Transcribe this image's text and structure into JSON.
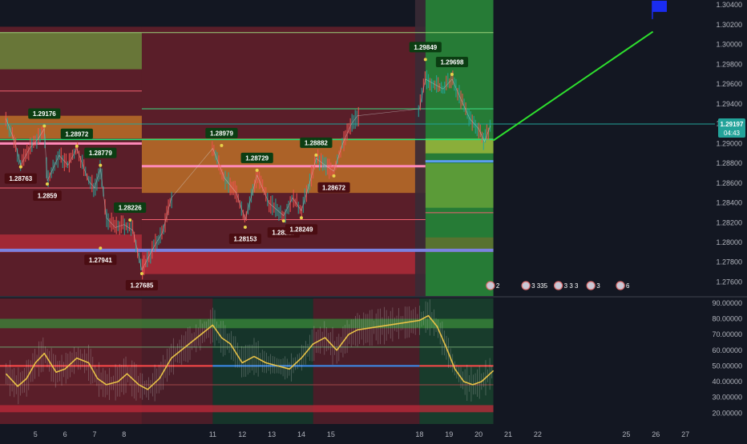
{
  "chart_data": [
    {
      "type": "candlestick",
      "panel": "price",
      "ylim": [
        1.2745,
        1.3045
      ],
      "grid": false,
      "y_ticks": [
        "1.30400",
        "1.30200",
        "1.30000",
        "1.29800",
        "1.29600",
        "1.29400",
        "1.29200",
        "1.29000",
        "1.28800",
        "1.28600",
        "1.28400",
        "1.28200",
        "1.28000",
        "1.27800",
        "1.27600"
      ],
      "current_price": "1.29197",
      "countdown": "04:43",
      "high_labels": [
        {
          "date": 5.3,
          "value": 1.29176,
          "label": "1.29176"
        },
        {
          "date": 6.4,
          "value": 1.28972,
          "label": "1.28972"
        },
        {
          "date": 7.2,
          "value": 1.28779,
          "label": "1.28779"
        },
        {
          "date": 8.2,
          "value": 1.28226,
          "label": "1.28226"
        },
        {
          "date": 11.3,
          "value": 1.28979,
          "label": "1.28979"
        },
        {
          "date": 12.5,
          "value": 1.28729,
          "label": "1.28729"
        },
        {
          "date": 14.5,
          "value": 1.28882,
          "label": "1.28882"
        },
        {
          "date": 18.2,
          "value": 1.29849,
          "label": "1.29849"
        },
        {
          "date": 19.1,
          "value": 1.29698,
          "label": "1.29698"
        }
      ],
      "low_labels": [
        {
          "date": 4.5,
          "value": 1.28763,
          "label": "1.28763"
        },
        {
          "date": 5.4,
          "value": 1.2859,
          "label": "1.2859"
        },
        {
          "date": 7.2,
          "value": 1.27941,
          "label": "1.27941"
        },
        {
          "date": 8.6,
          "value": 1.27685,
          "label": "1.27685"
        },
        {
          "date": 12.1,
          "value": 1.28153,
          "label": "1.28153"
        },
        {
          "date": 13.4,
          "value": 1.28217,
          "label": "1.28217"
        },
        {
          "date": 14.0,
          "value": 1.28249,
          "label": "1.28249"
        },
        {
          "date": 15.1,
          "value": 1.28672,
          "label": "1.28672"
        }
      ],
      "close_path": [
        {
          "date": 4.0,
          "value": 1.2925
        },
        {
          "date": 4.3,
          "value": 1.2902
        },
        {
          "date": 4.5,
          "value": 1.2878
        },
        {
          "date": 4.8,
          "value": 1.2895
        },
        {
          "date": 5.1,
          "value": 1.2905
        },
        {
          "date": 5.3,
          "value": 1.2915
        },
        {
          "date": 5.4,
          "value": 1.2862
        },
        {
          "date": 5.8,
          "value": 1.2888
        },
        {
          "date": 6.1,
          "value": 1.2878
        },
        {
          "date": 6.4,
          "value": 1.2895
        },
        {
          "date": 6.8,
          "value": 1.2862
        },
        {
          "date": 7.0,
          "value": 1.2855
        },
        {
          "date": 7.2,
          "value": 1.2875
        },
        {
          "date": 7.4,
          "value": 1.2825
        },
        {
          "date": 7.7,
          "value": 1.2815
        },
        {
          "date": 8.0,
          "value": 1.2818
        },
        {
          "date": 8.3,
          "value": 1.2812
        },
        {
          "date": 8.6,
          "value": 1.2772
        },
        {
          "date": 9.0,
          "value": 1.2795
        },
        {
          "date": 9.3,
          "value": 1.281
        },
        {
          "date": 9.6,
          "value": 1.2845
        },
        {
          "date": 11.0,
          "value": 1.2895
        },
        {
          "date": 11.4,
          "value": 1.2865
        },
        {
          "date": 11.8,
          "value": 1.285
        },
        {
          "date": 12.1,
          "value": 1.2823
        },
        {
          "date": 12.5,
          "value": 1.2868
        },
        {
          "date": 12.9,
          "value": 1.284
        },
        {
          "date": 13.4,
          "value": 1.2827
        },
        {
          "date": 13.7,
          "value": 1.2845
        },
        {
          "date": 14.0,
          "value": 1.2832
        },
        {
          "date": 14.3,
          "value": 1.2862
        },
        {
          "date": 14.5,
          "value": 1.2885
        },
        {
          "date": 14.8,
          "value": 1.2878
        },
        {
          "date": 15.1,
          "value": 1.2872
        },
        {
          "date": 15.4,
          "value": 1.29
        },
        {
          "date": 15.7,
          "value": 1.292
        },
        {
          "date": 15.9,
          "value": 1.2928
        },
        {
          "date": 18.0,
          "value": 1.2935
        },
        {
          "date": 18.2,
          "value": 1.2965
        },
        {
          "date": 18.5,
          "value": 1.296
        },
        {
          "date": 18.8,
          "value": 1.2955
        },
        {
          "date": 19.1,
          "value": 1.2965
        },
        {
          "date": 19.4,
          "value": 1.2945
        },
        {
          "date": 19.7,
          "value": 1.2925
        },
        {
          "date": 20.0,
          "value": 1.2915
        },
        {
          "date": 20.2,
          "value": 1.2902
        },
        {
          "date": 20.4,
          "value": 1.2918
        }
      ],
      "weekend_gaps": [
        [
          9.6,
          11.0
        ],
        [
          15.9,
          18.0
        ]
      ],
      "zones": [
        {
          "from": 3.8,
          "to": 8.6,
          "bottom": 1.2745,
          "top": 1.3018,
          "color": "#b22833",
          "opacity": 0.45
        },
        {
          "from": 8.6,
          "to": 18.2,
          "bottom": 1.2745,
          "top": 1.3018,
          "color": "#b22833",
          "opacity": 0.45
        },
        {
          "from": 18.2,
          "to": 20.5,
          "bottom": 1.2745,
          "top": 1.3045,
          "color": "#2e9e3e",
          "opacity": 0.75
        },
        {
          "from": 3.8,
          "to": 8.6,
          "bottom": 1.2975,
          "top": 1.3012,
          "color": "#6c8c3c",
          "opacity": 0.8
        },
        {
          "from": 3.8,
          "to": 8.6,
          "bottom": 1.2905,
          "top": 1.2928,
          "color": "#c87a28",
          "opacity": 0.75
        },
        {
          "from": 8.6,
          "to": 18.2,
          "bottom": 1.285,
          "top": 1.2905,
          "color": "#c87a28",
          "opacity": 0.75
        },
        {
          "from": 3.8,
          "to": 8.6,
          "bottom": 1.279,
          "top": 1.2808,
          "color": "#d03040",
          "opacity": 0.6
        },
        {
          "from": 8.6,
          "to": 18.2,
          "bottom": 1.2768,
          "top": 1.2792,
          "color": "#d03040",
          "opacity": 0.6
        },
        {
          "from": 18.2,
          "to": 20.5,
          "bottom": 1.289,
          "top": 1.2905,
          "color": "#b5c43c",
          "opacity": 0.7
        },
        {
          "from": 18.2,
          "to": 20.5,
          "bottom": 1.2835,
          "top": 1.288,
          "color": "#7fb03a",
          "opacity": 0.6
        },
        {
          "from": 18.2,
          "to": 20.5,
          "bottom": 1.279,
          "top": 1.2805,
          "color": "#8a6a2a",
          "opacity": 0.5
        },
        {
          "from": 17.85,
          "to": 18.2,
          "bottom": 1.2745,
          "top": 1.3045,
          "color": "#3a2a35",
          "opacity": 0.9
        }
      ],
      "levels": [
        {
          "from": 3.8,
          "to": 8.6,
          "value": 1.3012,
          "color": "#9bd27a",
          "width": 1
        },
        {
          "from": 8.6,
          "to": 18.2,
          "value": 1.3012,
          "color": "#9bd27a",
          "width": 1
        },
        {
          "from": 18.2,
          "to": 20.5,
          "value": 1.3012,
          "color": "#9bd27a",
          "width": 1
        },
        {
          "from": 3.8,
          "to": 8.6,
          "value": 1.2953,
          "color": "#f06070",
          "width": 1
        },
        {
          "from": 8.6,
          "to": 18.2,
          "value": 1.2935,
          "color": "#3ddc84",
          "width": 1
        },
        {
          "from": 18.2,
          "to": 20.5,
          "value": 1.2935,
          "color": "#3ddc84",
          "width": 1
        },
        {
          "from": 3.8,
          "to": 8.6,
          "value": 1.29,
          "color": "#ff8ab8",
          "width": 3
        },
        {
          "from": 8.6,
          "to": 18.2,
          "value": 1.2877,
          "color": "#ff8ab8",
          "width": 3
        },
        {
          "from": 3.8,
          "to": 20.5,
          "value": 1.2904,
          "color": "#22e07a",
          "width": 1.5
        },
        {
          "from": 18.2,
          "to": 20.5,
          "value": 1.2882,
          "color": "#5b9cf0",
          "width": 3
        },
        {
          "from": 3.8,
          "to": 8.6,
          "value": 1.2855,
          "color": "#f06070",
          "width": 1
        },
        {
          "from": 8.6,
          "to": 18.2,
          "value": 1.2823,
          "color": "#f06070",
          "width": 1
        },
        {
          "from": 18.2,
          "to": 20.5,
          "value": 1.283,
          "color": "#f06070",
          "width": 1
        },
        {
          "from": 3.8,
          "to": 20.5,
          "value": 1.2792,
          "color": "#7b82e0",
          "width": 4
        }
      ],
      "projection": {
        "from": {
          "date": 20.5,
          "value": 1.2903
        },
        "to": {
          "date": 25.9,
          "value": 1.3013
        },
        "color": "#2ee02e"
      },
      "flag": {
        "date": 26.1,
        "value": 1.3037,
        "color": "#1a2cf0"
      },
      "event_markers": [
        {
          "date": 20.4,
          "text": "2"
        },
        {
          "date": 21.6,
          "text": "3 335"
        },
        {
          "date": 22.7,
          "text": "3 3 3"
        },
        {
          "date": 23.8,
          "text": "3"
        },
        {
          "date": 24.8,
          "text": "6"
        }
      ]
    },
    {
      "type": "line",
      "panel": "oscillator",
      "ylim": [
        13,
        93
      ],
      "grid": false,
      "y_ticks": [
        "90.00000",
        "80.00000",
        "70.00000",
        "60.00000",
        "50.00000",
        "40.00000",
        "30.00000",
        "20.00000"
      ],
      "series": [
        {
          "color": "#e8c246",
          "x": [
            4.0,
            4.4,
            4.7,
            5.0,
            5.3,
            5.7,
            6.0,
            6.4,
            6.8,
            7.1,
            7.4,
            7.8,
            8.1,
            8.5,
            8.8,
            9.2,
            9.6,
            11.0,
            11.3,
            11.6,
            12.0,
            12.4,
            12.8,
            13.2,
            13.6,
            14.0,
            14.4,
            14.8,
            15.2,
            15.6,
            15.9,
            18.0,
            18.3,
            18.6,
            18.9,
            19.2,
            19.5,
            19.8,
            20.1,
            20.5
          ],
          "values": [
            45,
            37,
            42,
            52,
            58,
            46,
            48,
            55,
            52,
            42,
            38,
            40,
            45,
            38,
            35,
            42,
            55,
            76,
            68,
            64,
            52,
            56,
            52,
            50,
            48,
            55,
            64,
            68,
            60,
            70,
            73,
            79,
            82,
            75,
            62,
            48,
            40,
            38,
            40,
            47
          ]
        }
      ],
      "bands": [
        {
          "bottom": 74,
          "top": 80,
          "color": "#3a8a3a",
          "opacity": 0.75
        },
        {
          "bottom": 20.5,
          "top": 25,
          "color": "#c02a3a",
          "opacity": 0.75
        }
      ],
      "levels": [
        {
          "from": 3.8,
          "to": 20.5,
          "value": 62,
          "color": "#6b9e6b",
          "width": 1
        },
        {
          "from": 3.8,
          "to": 11.0,
          "value": 50,
          "color": "#ff4a4a",
          "width": 2
        },
        {
          "from": 11.0,
          "to": 18.0,
          "value": 50,
          "color": "#3d8ef0",
          "width": 2
        },
        {
          "from": 18.0,
          "to": 20.5,
          "value": 50,
          "color": "#ff4a4a",
          "width": 2
        },
        {
          "from": 3.8,
          "to": 20.5,
          "value": 38,
          "color": "#a04848",
          "width": 1
        }
      ],
      "shading": [
        {
          "from": 3.8,
          "to": 8.6,
          "color": "#b22833",
          "opacity": 0.45
        },
        {
          "from": 8.6,
          "to": 11.0,
          "color": "#b22833",
          "opacity": 0.35
        },
        {
          "from": 11.0,
          "to": 14.4,
          "color": "#1e6b3a",
          "opacity": 0.35
        },
        {
          "from": 14.4,
          "to": 18.0,
          "color": "#b22833",
          "opacity": 0.35
        },
        {
          "from": 18.0,
          "to": 20.5,
          "color": "#1e6b3a",
          "opacity": 0.45
        }
      ]
    }
  ],
  "x_axis": {
    "ticks": [
      {
        "date": 5,
        "label": "5"
      },
      {
        "date": 6,
        "label": "6"
      },
      {
        "date": 7,
        "label": "7"
      },
      {
        "date": 8,
        "label": "8"
      },
      {
        "date": 11,
        "label": "11"
      },
      {
        "date": 12,
        "label": "12"
      },
      {
        "date": 13,
        "label": "13"
      },
      {
        "date": 14,
        "label": "14"
      },
      {
        "date": 15,
        "label": "15"
      },
      {
        "date": 18,
        "label": "18"
      },
      {
        "date": 19,
        "label": "19"
      },
      {
        "date": 20,
        "label": "20"
      },
      {
        "date": 21,
        "label": "21"
      },
      {
        "date": 22,
        "label": "22"
      },
      {
        "date": 25,
        "label": "25"
      },
      {
        "date": 26,
        "label": "26"
      },
      {
        "date": 27,
        "label": "27"
      }
    ]
  },
  "colors": {
    "background": "#131722",
    "axis_text": "#b2b5be",
    "price_tag": "#23a39a",
    "price_line": "#23a39a",
    "high_label_bg": "#0b3d12",
    "low_label_bg": "#4a0d12",
    "up_candle": "#26a69a",
    "down_candle": "#ef5350",
    "divider": "#2a2e39"
  }
}
